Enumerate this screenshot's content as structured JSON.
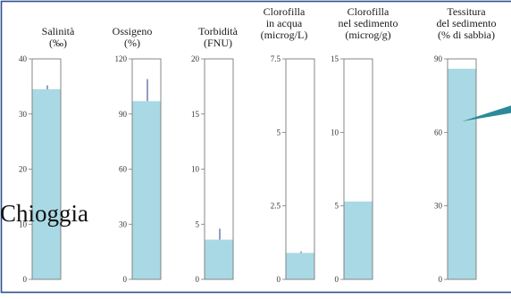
{
  "station_label": "Chioggia",
  "colors": {
    "bar_fill": "#a9d9e4",
    "box_stroke": "#7a7a7a",
    "error_bar": "#4b5b9c",
    "frame": "#2e4f8c",
    "pointer": "#2b8a9a"
  },
  "chart_data": [
    {
      "type": "bar",
      "title_lines": [
        "Salinità",
        "(‰)"
      ],
      "yticks": [
        0,
        10,
        20,
        30,
        40
      ],
      "ylim": [
        0,
        40
      ],
      "value": 34.5,
      "error_top": 35.2
    },
    {
      "type": "bar",
      "title_lines": [
        "Ossigeno",
        "(%)"
      ],
      "yticks": [
        0,
        30,
        60,
        90,
        120
      ],
      "ylim": [
        0,
        120
      ],
      "value": 97,
      "error_top": 109
    },
    {
      "type": "bar",
      "title_lines": [
        "Torbidità",
        "(FNU)"
      ],
      "yticks": [
        0,
        5,
        10,
        15,
        20
      ],
      "ylim": [
        0,
        20
      ],
      "value": 3.6,
      "error_top": 4.6
    },
    {
      "type": "bar",
      "title_lines": [
        "Clorofilla",
        "in acqua",
        "(microg/L)"
      ],
      "yticks": [
        0,
        2.5,
        5,
        7.5
      ],
      "ylim": [
        0,
        7.5
      ],
      "value": 0.9,
      "error_top": 0.95
    },
    {
      "type": "bar",
      "title_lines": [
        "Clorofilla",
        "nel sedimento",
        "(microg/g)"
      ],
      "yticks": [
        0,
        5,
        10,
        15
      ],
      "ylim": [
        0,
        15
      ],
      "value": 5.3,
      "error_top": null
    },
    {
      "type": "bar",
      "title_lines": [
        "Tessitura",
        "del sedimento",
        "(% di sabbia)"
      ],
      "yticks": [
        0,
        30,
        60,
        90
      ],
      "ylim": [
        0,
        90
      ],
      "value": 86,
      "error_top": null
    }
  ]
}
